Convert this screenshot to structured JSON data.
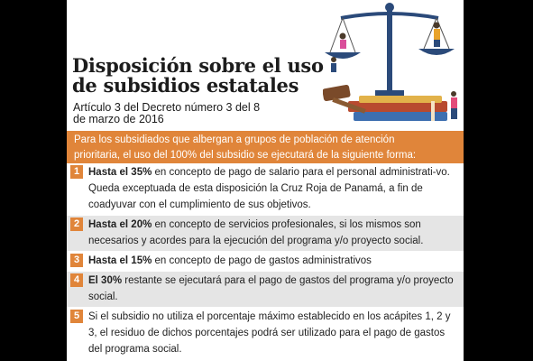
{
  "header": {
    "title_line1": "Disposición sobre el uso",
    "title_line2": "de subsidios estatales",
    "subtitle_line1": "Artículo 3 del Decreto número 3 del 8",
    "subtitle_line2": "de marzo de 2016"
  },
  "intro": {
    "line1": "Para los subsidiados que albergan a grupos de población de atención",
    "line2": "prioritaria, el uso del 100% del subsidio se ejecutará de la siguiente forma:"
  },
  "items": [
    {
      "number": "1",
      "bold": "Hasta el 35%",
      "text": " en concepto de pago de salario para el personal administrati-vo. Queda exceptuada de esta disposición la Cruz Roja de Panamá, a fin de coadyuvar con el cumplimiento de sus objetivos."
    },
    {
      "number": "2",
      "bold": "Hasta el 20%",
      "text": " en concepto de servicios profesionales, si los mismos son necesarios y acordes para la ejecución del programa y/o proyecto social."
    },
    {
      "number": "3",
      "bold": "Hasta el 15%",
      "text": " en concepto de pago de gastos administrativos"
    },
    {
      "number": "4",
      "bold": "El 30%",
      "text": " restante se ejecutará para el pago de gastos del programa y/o proyecto social."
    },
    {
      "number": "5",
      "bold": "",
      "text": "Si el subsidio no utiliza el porcentaje máximo establecido en los acápites 1, 2 y 3, el residuo de dichos porcentajes podrá ser utilizado para el pago de gastos del programa social."
    }
  ],
  "colors": {
    "accent": "#e0853a",
    "shade": "#e5e5e5",
    "background": "#000000"
  }
}
